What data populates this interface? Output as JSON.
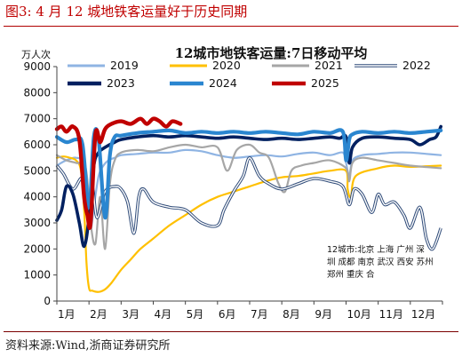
{
  "figure": {
    "caption": "图3:   4 月 12 城地铁客运量好于历史同期",
    "source": "资料来源:Wind,浙商证券研究所"
  },
  "chart_data": {
    "type": "line",
    "title": "12城市地铁客运量:7日移动平均",
    "ylabel": "万人次",
    "xlabel": "",
    "ylim": [
      0,
      9000
    ],
    "yticks": [
      0,
      1000,
      2000,
      3000,
      4000,
      5000,
      6000,
      7000,
      8000,
      9000
    ],
    "x_unit": "month",
    "xlim": [
      1,
      13
    ],
    "categories": [
      "1月",
      "2月",
      "3月",
      "4月",
      "5月",
      "6月",
      "7月",
      "8月",
      "9月",
      "10月",
      "11月",
      "12月"
    ],
    "legend_position": "top",
    "note": "12城市:北京 上海 广州 深圳 成都 南京 武汉 西安 苏州 郑州 重庆 合",
    "series": [
      {
        "name": "2019",
        "color": "#8fb4e3",
        "style": "line",
        "x": [
          1.0,
          1.2,
          1.4,
          1.6,
          1.8,
          1.95,
          2.05,
          2.15,
          2.3,
          2.45,
          2.6,
          2.8,
          3.0,
          3.5,
          4.0,
          4.5,
          5.0,
          5.5,
          6.0,
          6.5,
          7.0,
          7.5,
          8.0,
          8.5,
          9.0,
          9.5,
          9.9,
          10.0,
          10.1,
          10.2,
          10.5,
          11.0,
          11.5,
          12.0,
          12.5,
          12.95
        ],
        "y": [
          5200,
          5350,
          5450,
          5500,
          5300,
          4000,
          2800,
          3600,
          4800,
          5200,
          5400,
          5500,
          5600,
          5650,
          5700,
          5700,
          5800,
          5750,
          5600,
          5500,
          5550,
          5600,
          5550,
          5650,
          5700,
          5600,
          5700,
          5300,
          4800,
          5400,
          5600,
          5650,
          5700,
          5700,
          5650,
          5600
        ]
      },
      {
        "name": "2020",
        "color": "#ffc000",
        "style": "line",
        "x": [
          1.0,
          1.2,
          1.4,
          1.6,
          1.75,
          1.85,
          1.92,
          2.0,
          2.1,
          2.3,
          2.5,
          2.7,
          3.0,
          3.3,
          3.6,
          4.0,
          4.5,
          5.0,
          5.5,
          6.0,
          6.5,
          7.0,
          7.5,
          8.0,
          8.5,
          9.0,
          9.5,
          10.0,
          10.05,
          10.15,
          10.3,
          11.0,
          11.5,
          12.0,
          12.95
        ],
        "y": [
          5500,
          5550,
          5500,
          5400,
          5000,
          3500,
          1500,
          500,
          400,
          350,
          450,
          700,
          1200,
          1600,
          2000,
          2400,
          2900,
          3300,
          3700,
          4000,
          4200,
          4400,
          4600,
          4750,
          4800,
          4900,
          5000,
          5000,
          4300,
          4000,
          4800,
          5100,
          5200,
          5150,
          5200
        ]
      },
      {
        "name": "2021",
        "color": "#a6a6a6",
        "style": "line",
        "x": [
          1.0,
          1.3,
          1.6,
          1.9,
          2.05,
          2.2,
          2.35,
          2.5,
          2.65,
          2.8,
          3.0,
          3.5,
          4.0,
          4.5,
          5.0,
          5.5,
          6.0,
          6.3,
          6.6,
          7.0,
          7.3,
          7.6,
          7.9,
          8.1,
          8.3,
          8.6,
          9.0,
          9.5,
          10.0,
          10.1,
          10.2,
          10.5,
          11.0,
          11.5,
          12.0,
          12.95
        ],
        "y": [
          5600,
          5400,
          5300,
          5100,
          3000,
          2200,
          4000,
          2000,
          4500,
          5400,
          5700,
          5800,
          5750,
          5900,
          6000,
          5900,
          5900,
          5000,
          5800,
          6000,
          5700,
          5500,
          4500,
          4200,
          5000,
          5200,
          5300,
          5400,
          5100,
          4600,
          5300,
          5500,
          5400,
          5300,
          5200,
          5100
        ]
      },
      {
        "name": "2022",
        "color": "#2e4a78",
        "style": "double",
        "x": [
          1.0,
          1.2,
          1.5,
          1.8,
          1.95,
          2.1,
          2.25,
          2.5,
          2.8,
          3.0,
          3.2,
          3.4,
          3.55,
          3.7,
          4.0,
          4.5,
          5.0,
          5.5,
          6.0,
          6.2,
          6.5,
          6.8,
          7.0,
          7.3,
          7.6,
          8.0,
          8.5,
          9.0,
          9.5,
          9.9,
          10.1,
          10.25,
          10.5,
          10.8,
          11.0,
          11.2,
          11.5,
          11.8,
          12.0,
          12.3,
          12.5,
          12.7,
          12.95
        ],
        "y": [
          5200,
          4900,
          4300,
          4700,
          3400,
          4400,
          3200,
          4200,
          4400,
          4300,
          3800,
          2600,
          4000,
          4300,
          3800,
          3600,
          3500,
          3000,
          2900,
          3500,
          4200,
          4800,
          5500,
          4800,
          4500,
          4300,
          4500,
          4700,
          4600,
          4400,
          3700,
          4300,
          4100,
          3400,
          4100,
          3700,
          3800,
          3300,
          2800,
          3600,
          2400,
          2000,
          2800
        ]
      },
      {
        "name": "2023",
        "color": "#002060",
        "style": "line",
        "x": [
          1.0,
          1.15,
          1.3,
          1.5,
          1.7,
          1.85,
          2.0,
          2.15,
          2.3,
          2.5,
          2.8,
          3.0,
          3.5,
          4.0,
          4.5,
          5.0,
          5.5,
          6.0,
          6.5,
          7.0,
          7.5,
          8.0,
          8.5,
          9.0,
          9.5,
          9.8,
          10.0,
          10.1,
          10.2,
          10.5,
          11.0,
          11.5,
          12.0,
          12.3,
          12.6,
          12.8,
          12.95
        ],
        "y": [
          3100,
          3500,
          4400,
          4100,
          3000,
          2100,
          3200,
          5200,
          5700,
          5900,
          6100,
          6200,
          6300,
          6350,
          6300,
          6350,
          6300,
          6250,
          6300,
          6250,
          6200,
          6250,
          6200,
          6250,
          6300,
          6250,
          6300,
          5300,
          5900,
          6250,
          6300,
          6250,
          6200,
          6000,
          6200,
          6300,
          6700
        ]
      },
      {
        "name": "2024",
        "color": "#2a86d0",
        "style": "line",
        "x": [
          1.0,
          1.3,
          1.6,
          1.8,
          2.0,
          2.15,
          2.3,
          2.5,
          2.65,
          2.8,
          3.0,
          3.5,
          4.0,
          4.5,
          5.0,
          5.5,
          6.0,
          6.5,
          7.0,
          7.5,
          8.0,
          8.5,
          9.0,
          9.5,
          9.9,
          10.0,
          10.1,
          10.2,
          10.5,
          11.0,
          11.5,
          12.0,
          12.5,
          12.95
        ],
        "y": [
          6300,
          6100,
          6200,
          6000,
          3600,
          6300,
          6200,
          3200,
          5600,
          6300,
          6350,
          6450,
          6500,
          6550,
          6450,
          6500,
          6450,
          6500,
          6450,
          6500,
          6450,
          6400,
          6500,
          6450,
          6500,
          5400,
          6200,
          6400,
          6500,
          6450,
          6500,
          6450,
          6500,
          6550
        ]
      },
      {
        "name": "2025",
        "color": "#c00000",
        "style": "line",
        "x": [
          1.0,
          1.15,
          1.3,
          1.5,
          1.7,
          1.85,
          1.95,
          2.05,
          2.2,
          2.35,
          2.5,
          2.7,
          3.0,
          3.3,
          3.6,
          3.8,
          4.0,
          4.2,
          4.4,
          4.6,
          4.85
        ],
        "y": [
          6600,
          6700,
          6500,
          6700,
          6200,
          4000,
          3300,
          3000,
          6400,
          6100,
          6600,
          6800,
          6900,
          6800,
          7000,
          6800,
          7000,
          6900,
          6700,
          6900,
          6800
        ]
      }
    ]
  }
}
